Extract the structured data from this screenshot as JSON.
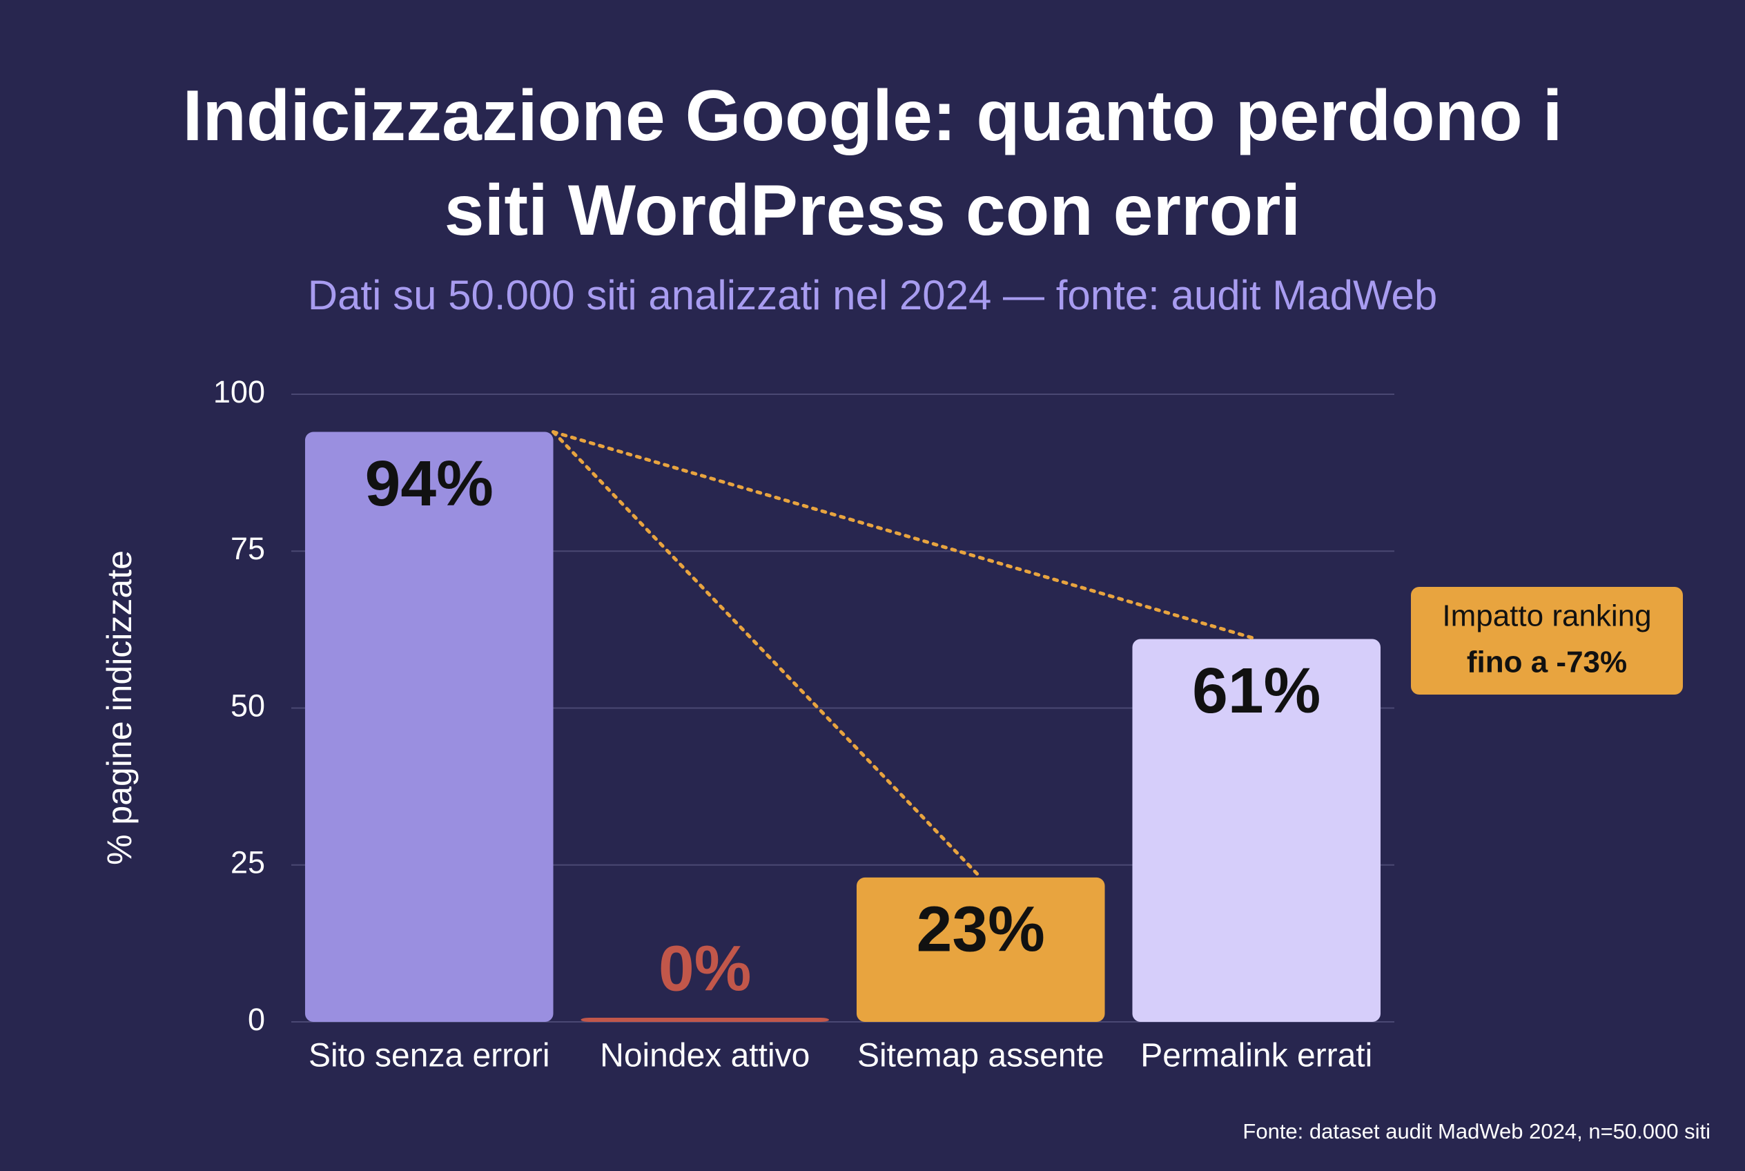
{
  "chart_data": {
    "type": "bar",
    "title": "Indicizzazione Google: quanto perdono i siti WordPress con errori",
    "subtitle": "Dati su 50.000 siti analizzati nel 2024 — fonte: audit MadWeb",
    "y_label": "% pagine indicizzate",
    "categories": [
      "Sito senza errori",
      "Noindex attivo",
      "Sitemap assente",
      "Permalink errati"
    ],
    "values": [
      94,
      0,
      23,
      61
    ],
    "value_labels": [
      "94%",
      "0%",
      "23%",
      "61%"
    ],
    "colors": [
      "#9a8fe0",
      "#c2574a",
      "#e8a43f",
      "#d6cefa"
    ],
    "ylim": [
      0,
      100
    ],
    "yticks": [
      0,
      25,
      50,
      75,
      100
    ],
    "grid": true,
    "annotation": [
      "Impatto ranking",
      "fino a -73%"
    ],
    "source": "Fonte: dataset audit MadWeb 2024, n=50.000 siti"
  }
}
